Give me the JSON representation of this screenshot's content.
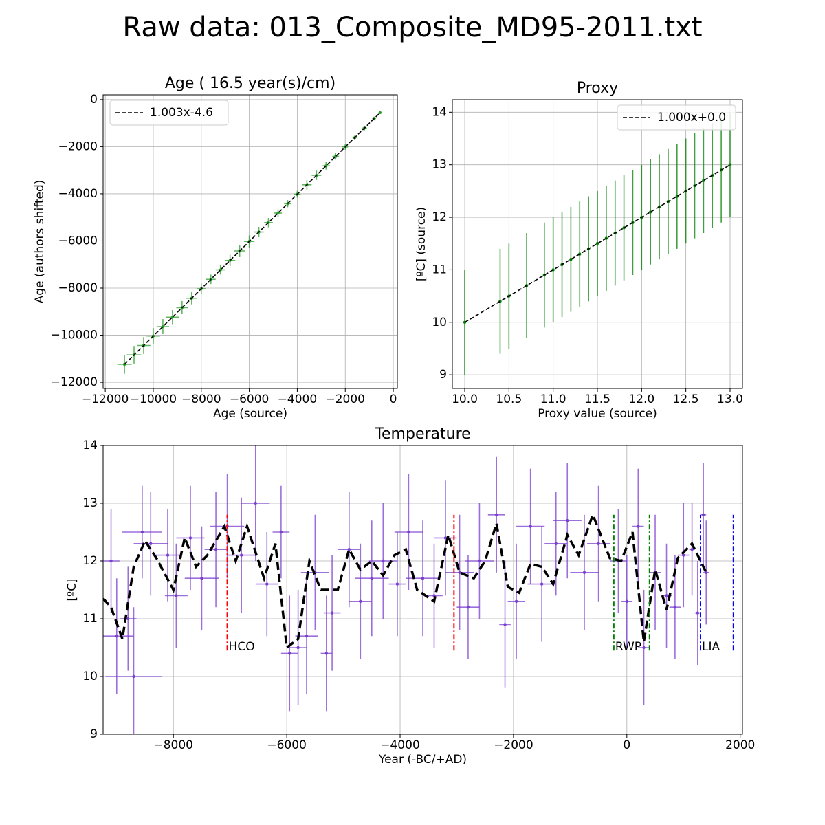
{
  "title": "Raw data: 013_Composite_MD95-2011.txt",
  "chart_data": [
    {
      "type": "errorbar",
      "title": "Age ( 16.5 year(s)/cm)",
      "xlabel": "Age (source)",
      "ylabel": "Age (authors shifted)",
      "xlim": [
        -12090,
        170
      ],
      "ylim": [
        -12260,
        200
      ],
      "xticks": [
        {
          "value": -12000,
          "label": "−12000"
        },
        {
          "value": -10000,
          "label": "−10000"
        },
        {
          "value": -8000,
          "label": "−8000"
        },
        {
          "value": -6000,
          "label": "−6000"
        },
        {
          "value": -4000,
          "label": "−4000"
        },
        {
          "value": -2000,
          "label": "−2000"
        },
        0
      ],
      "yticks": [
        0,
        {
          "value": -2000,
          "label": "−2000"
        },
        {
          "value": -4000,
          "label": "−4000"
        },
        {
          "value": -6000,
          "label": "−6000"
        },
        {
          "value": -8000,
          "label": "−8000"
        },
        {
          "value": -10000,
          "label": "−10000"
        },
        {
          "value": -12000,
          "label": "−12000"
        }
      ],
      "grid": true,
      "color": "#2ca02c",
      "legend": "upper left",
      "x": [
        -11200,
        -10800,
        -10400,
        -10000,
        -9600,
        -9200,
        -8800,
        -8400,
        -8000,
        -7600,
        -7200,
        -6800,
        -6400,
        -6000,
        -5600,
        -5200,
        -4800,
        -4400,
        -4000,
        -3600,
        -3200,
        -2800,
        -2400,
        -2000,
        -1600,
        -1200,
        -800,
        -550
      ],
      "y": [
        -11239,
        -10837,
        -10436,
        -10035,
        -9634,
        -9233,
        -8831,
        -8430,
        -8029,
        -7628,
        -7227,
        -6825,
        -6424,
        -6023,
        -5622,
        -5221,
        -4819,
        -4418,
        -4017,
        -3616,
        -3215,
        -2813,
        -2412,
        -2011,
        -1610,
        -1209,
        -807,
        -557
      ],
      "xerr": [
        300,
        300,
        280,
        280,
        260,
        260,
        240,
        220,
        200,
        200,
        200,
        220,
        220,
        220,
        200,
        180,
        160,
        150,
        140,
        200,
        200,
        160,
        140,
        120,
        100,
        100,
        80,
        60
      ],
      "yerr": [
        400,
        380,
        360,
        340,
        320,
        300,
        280,
        260,
        220,
        200,
        200,
        240,
        260,
        260,
        220,
        200,
        160,
        150,
        140,
        200,
        200,
        160,
        140,
        120,
        100,
        100,
        80,
        60
      ],
      "fit": {
        "name": "1.003x-4.6",
        "slope": 1.003,
        "intercept": -4.6,
        "color": "#000000"
      }
    },
    {
      "type": "errorbar",
      "title": "Proxy",
      "xlabel": "Proxy value (source)",
      "ylabel": "[ºC] (source)",
      "xlim": [
        9.86,
        13.14
      ],
      "ylim": [
        8.74,
        14.24
      ],
      "xticks": [
        {
          "value": 10,
          "label": "10.0"
        },
        10.5,
        {
          "value": 11,
          "label": "11.0"
        },
        11.5,
        {
          "value": 12,
          "label": "12.0"
        },
        12.5,
        {
          "value": 13,
          "label": "13.0"
        }
      ],
      "yticks": [
        9,
        10,
        11,
        12,
        13,
        14
      ],
      "grid": true,
      "color": "#008000",
      "legend": "upper right",
      "x": [
        10.0,
        10.4,
        10.5,
        10.7,
        10.9,
        11.0,
        11.1,
        11.2,
        11.3,
        11.4,
        11.5,
        11.6,
        11.7,
        11.8,
        11.9,
        12.0,
        12.1,
        12.2,
        12.3,
        12.4,
        12.5,
        12.6,
        12.7,
        12.8,
        12.9,
        13.0
      ],
      "y": [
        10.0,
        10.4,
        10.5,
        10.7,
        10.9,
        11.0,
        11.1,
        11.2,
        11.3,
        11.4,
        11.5,
        11.6,
        11.7,
        11.8,
        11.9,
        12.0,
        12.1,
        12.2,
        12.3,
        12.4,
        12.5,
        12.6,
        12.7,
        12.8,
        12.9,
        13.0
      ],
      "yerr": [
        1.0,
        1.0,
        1.0,
        1.0,
        1.0,
        1.0,
        1.0,
        1.0,
        1.0,
        1.0,
        1.0,
        1.0,
        1.0,
        1.0,
        1.0,
        1.0,
        1.0,
        1.0,
        1.0,
        1.0,
        1.0,
        1.0,
        1.0,
        1.0,
        1.0,
        1.0
      ],
      "fit": {
        "name": "1.000x+0.0",
        "slope": 1.0,
        "intercept": 0.0,
        "color": "#000000"
      }
    },
    {
      "type": "errorbar",
      "title": "Temperature",
      "xlabel": "Year (-BC/+AD)",
      "ylabel": "[ºC]",
      "xlim": [
        -9240,
        2040
      ],
      "ylim": [
        9,
        14
      ],
      "xticks": [
        {
          "value": -8000,
          "label": "−8000"
        },
        {
          "value": -6000,
          "label": "−6000"
        },
        {
          "value": -4000,
          "label": "−4000"
        },
        {
          "value": -2000,
          "label": "−2000"
        },
        0,
        2000
      ],
      "yticks": [
        9,
        10,
        11,
        12,
        13,
        14
      ],
      "grid": true,
      "color": "#7b3fd0",
      "x": [
        -9100,
        -9000,
        -8800,
        -8700,
        -8550,
        -8400,
        -8100,
        -7950,
        -7700,
        -7500,
        -7250,
        -7050,
        -6800,
        -6550,
        -6350,
        -6100,
        -5950,
        -5800,
        -5650,
        -5500,
        -5300,
        -5200,
        -4900,
        -4700,
        -4500,
        -4300,
        -4050,
        -3850,
        -3600,
        -3400,
        -3200,
        -2950,
        -2800,
        -2600,
        -2300,
        -2150,
        -1950,
        -1700,
        -1500,
        -1250,
        -1050,
        -750,
        -500,
        -150,
        0,
        200,
        300,
        500,
        700,
        850,
        1000,
        1150,
        1250,
        1350,
        1400
      ],
      "y": [
        12.0,
        10.7,
        11.0,
        10.0,
        12.5,
        12.3,
        12.1,
        11.4,
        12.4,
        11.7,
        12.2,
        12.6,
        12.1,
        13.0,
        11.6,
        12.5,
        10.4,
        10.5,
        10.7,
        11.8,
        10.4,
        11.1,
        12.2,
        11.3,
        11.7,
        12.0,
        11.6,
        12.5,
        11.7,
        11.4,
        12.4,
        11.8,
        11.2,
        12.0,
        12.8,
        10.9,
        11.3,
        12.6,
        11.6,
        12.3,
        12.7,
        11.8,
        12.3,
        12.0,
        11.3,
        12.6,
        10.5,
        11.8,
        11.4,
        11.2,
        12.1,
        12.2,
        11.1,
        12.8,
        11.8
      ],
      "xerr": [
        150,
        300,
        150,
        500,
        350,
        300,
        250,
        200,
        250,
        300,
        200,
        300,
        250,
        250,
        200,
        150,
        150,
        150,
        200,
        250,
        100,
        150,
        200,
        200,
        300,
        250,
        150,
        250,
        300,
        150,
        200,
        250,
        200,
        250,
        150,
        100,
        150,
        250,
        250,
        200,
        250,
        250,
        200,
        150,
        100,
        100,
        100,
        100,
        100,
        100,
        100,
        50,
        50,
        50,
        50
      ],
      "yerr": [
        0.9,
        1.0,
        0.9,
        1.2,
        0.8,
        0.9,
        0.8,
        0.9,
        0.9,
        0.9,
        1.0,
        0.9,
        1.0,
        1.0,
        0.9,
        0.8,
        1.0,
        1.0,
        1.0,
        1.0,
        1.0,
        1.0,
        1.0,
        1.0,
        1.0,
        1.0,
        0.9,
        1.0,
        1.0,
        0.9,
        1.0,
        1.0,
        0.9,
        1.0,
        1.0,
        1.1,
        1.0,
        1.0,
        1.0,
        0.9,
        1.0,
        1.0,
        1.0,
        0.9,
        0.8,
        1.0,
        1.0,
        1.0,
        0.9,
        0.9,
        0.9,
        0.8,
        0.9,
        0.9,
        0.9
      ],
      "line": {
        "color": "#000000",
        "x": [
          -9240,
          -9100,
          -8900,
          -8700,
          -8500,
          -8300,
          -8000,
          -7800,
          -7600,
          -7400,
          -7100,
          -6900,
          -6700,
          -6400,
          -6200,
          -6000,
          -5800,
          -5600,
          -5400,
          -5100,
          -4900,
          -4700,
          -4500,
          -4300,
          -4100,
          -3900,
          -3700,
          -3400,
          -3150,
          -2950,
          -2700,
          -2500,
          -2300,
          -2100,
          -1900,
          -1700,
          -1500,
          -1300,
          -1050,
          -850,
          -600,
          -300,
          -100,
          100,
          300,
          500,
          700,
          900,
          1150,
          1400
        ],
        "y": [
          11.35,
          11.2,
          10.65,
          11.9,
          12.35,
          12.05,
          11.5,
          12.4,
          11.9,
          12.1,
          12.6,
          12.0,
          12.6,
          11.7,
          12.3,
          10.5,
          10.65,
          12.0,
          11.5,
          11.5,
          12.2,
          11.85,
          12.0,
          11.75,
          12.1,
          12.2,
          11.5,
          11.3,
          12.45,
          11.8,
          11.7,
          12.0,
          12.65,
          11.55,
          11.45,
          11.95,
          11.9,
          11.6,
          12.45,
          12.1,
          12.8,
          12.05,
          12.0,
          12.5,
          10.6,
          11.85,
          11.15,
          12.05,
          12.3,
          11.8
        ]
      },
      "event_ylim": [
        10.45,
        12.8
      ],
      "events": [
        {
          "name": "HCO",
          "color": "#ff0000",
          "x": [
            -7050,
            -3050
          ]
        },
        {
          "name": "RWP",
          "color": "#008000",
          "x": [
            -230,
            400
          ]
        },
        {
          "name": "LIA",
          "color": "#0000ff",
          "x": [
            1300,
            1880
          ]
        }
      ]
    }
  ]
}
